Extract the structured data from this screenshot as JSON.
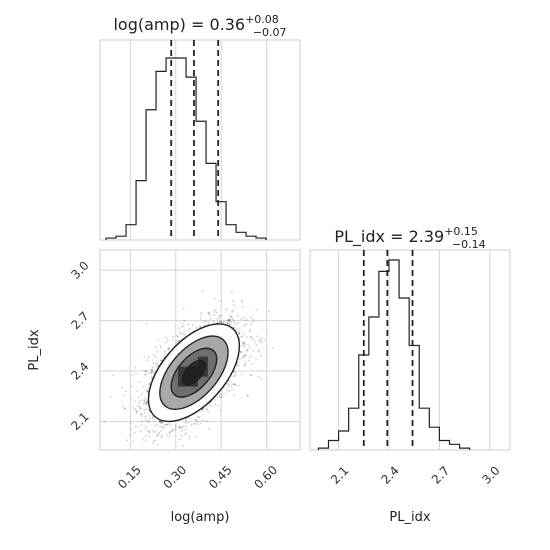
{
  "chart_data": {
    "type": "corner",
    "parameters": [
      "log(amp)",
      "PL_idx"
    ],
    "panels": [
      {
        "panel": "hist-log-amp",
        "type": "histogram",
        "title": {
          "prefix": "log(amp) = 0.36",
          "sup": "+0.08",
          "sub": "−0.07"
        },
        "xlim": [
          0.05,
          0.71
        ],
        "bin_width": 0.033,
        "bin_start": 0.07,
        "counts": [
          1,
          2,
          8,
          31,
          68,
          88,
          95,
          95,
          85,
          62,
          40,
          20,
          8,
          4,
          2,
          1
        ],
        "quantiles": [
          0.285,
          0.36,
          0.44
        ],
        "grid": true
      },
      {
        "panel": "hist-pl-idx",
        "type": "histogram",
        "title": {
          "prefix": "PL_idx = 2.39",
          "sup": "+0.15",
          "sub": "−0.14"
        },
        "xlim": [
          1.93,
          3.12
        ],
        "bin_width": 0.06,
        "bin_start": 1.98,
        "counts": [
          1,
          5,
          10,
          22,
          50,
          70,
          94,
          100,
          80,
          55,
          22,
          12,
          5,
          3,
          1
        ],
        "quantiles": [
          2.25,
          2.39,
          2.54
        ],
        "xlabel": "PL_idx",
        "xticks": [
          "2.1",
          "2.4",
          "2.7",
          "3.0"
        ],
        "grid": true
      },
      {
        "panel": "2d-density",
        "type": "scatter-density",
        "xlim": [
          0.05,
          0.71
        ],
        "ylim": [
          1.93,
          3.12
        ],
        "center": {
          "x": 0.36,
          "y": 2.39
        },
        "std": {
          "x": 0.075,
          "y": 0.145
        },
        "correlation": 0.55,
        "xlabel": "log(amp)",
        "ylabel": "PL_idx",
        "xticks": [
          "0.15",
          "0.30",
          "0.45",
          "0.60"
        ],
        "yticks": [
          "2.1",
          "2.4",
          "2.7",
          "3.0"
        ],
        "contour_levels_sigma": [
          0.5,
          1.0,
          1.5,
          2.0
        ],
        "grid": true
      }
    ],
    "colors": {
      "line": "#222222",
      "grid": "#d4d4d4",
      "axes": "#cccccc",
      "points": "#222222"
    }
  }
}
